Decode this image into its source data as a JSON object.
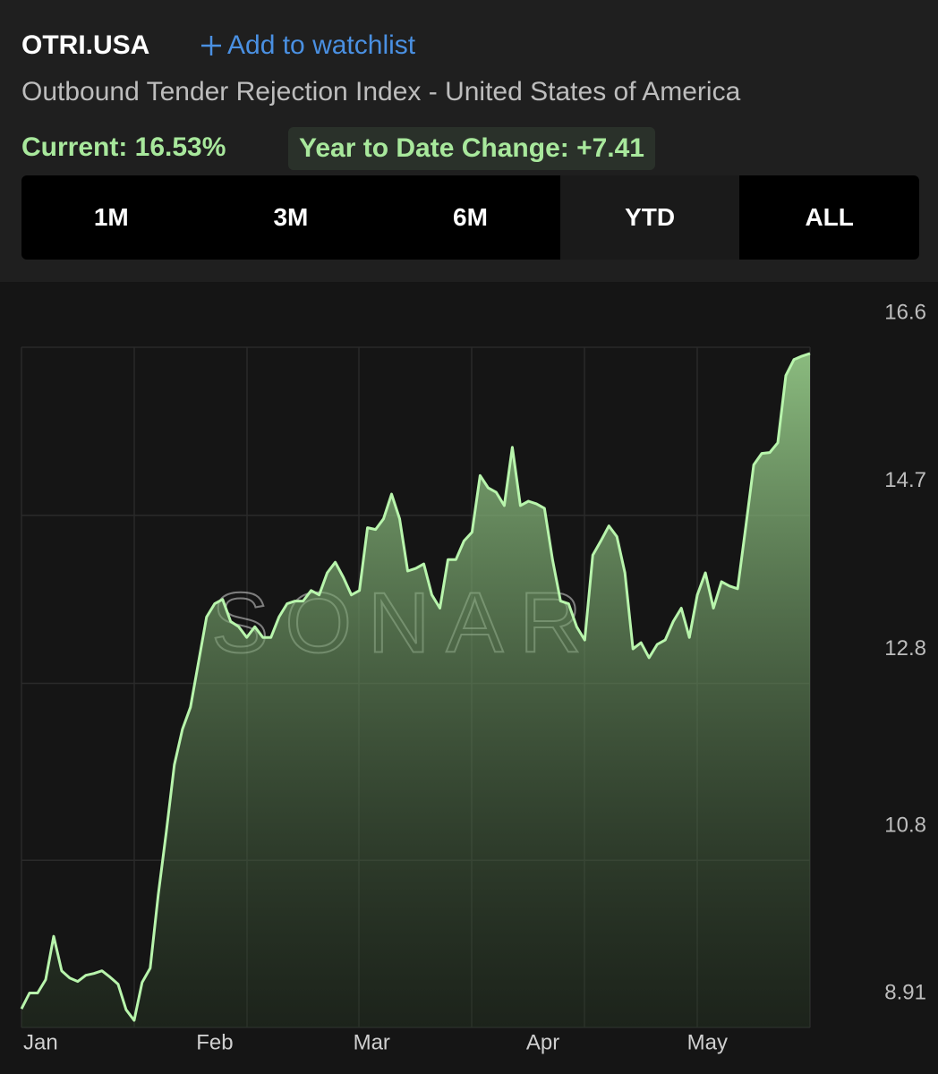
{
  "header": {
    "symbol": "OTRI.USA",
    "watchlist": "Add to watchlist",
    "subtitle": "Outbound Tender Rejection Index - United States of America",
    "current": "Current: 16.53%",
    "ytd_change": "Year to Date Change: +7.41"
  },
  "ranges": [
    "1M",
    "3M",
    "6M",
    "YTD",
    "ALL"
  ],
  "selected_range": "YTD",
  "chart_data": {
    "type": "area",
    "watermark": "SONAR",
    "color": "#b8f5ac",
    "grid": true,
    "values": [
      9.12,
      9.3,
      9.3,
      9.45,
      9.94,
      9.55,
      9.47,
      9.43,
      9.5,
      9.52,
      9.55,
      9.48,
      9.4,
      9.11,
      8.99,
      9.42,
      9.58,
      10.41,
      11.12,
      11.88,
      12.28,
      12.53,
      13.04,
      13.55,
      13.7,
      13.75,
      13.5,
      13.44,
      13.32,
      13.44,
      13.32,
      13.32,
      13.55,
      13.7,
      13.73,
      13.73,
      13.85,
      13.8,
      14.05,
      14.17,
      14.0,
      13.8,
      13.85,
      14.56,
      14.54,
      14.66,
      14.94,
      14.66,
      14.07,
      14.1,
      14.15,
      13.8,
      13.65,
      14.2,
      14.2,
      14.41,
      14.51,
      15.15,
      15.01,
      14.96,
      14.81,
      15.47,
      14.81,
      14.86,
      14.83,
      14.78,
      14.2,
      13.73,
      13.7,
      13.44,
      13.29,
      14.25,
      14.41,
      14.58,
      14.46,
      14.05,
      13.19,
      13.26,
      13.09,
      13.24,
      13.29,
      13.5,
      13.65,
      13.32,
      13.8,
      14.05,
      13.65,
      13.95,
      13.9,
      13.87,
      14.56,
      15.27,
      15.4,
      15.41,
      15.52,
      16.28,
      16.46,
      16.5,
      16.53
    ],
    "xlim": [
      0,
      98
    ],
    "xticks": [
      {
        "value": 0,
        "label": "Jan"
      },
      {
        "value": 21.5,
        "label": "Feb"
      },
      {
        "value": 41,
        "label": "Mar"
      },
      {
        "value": 62.5,
        "label": "Apr"
      },
      {
        "value": 82.5,
        "label": "May"
      }
    ],
    "ylim": [
      8.91,
      16.6
    ],
    "yticks": [
      16.6,
      14.7,
      12.8,
      10.8,
      8.91
    ]
  }
}
